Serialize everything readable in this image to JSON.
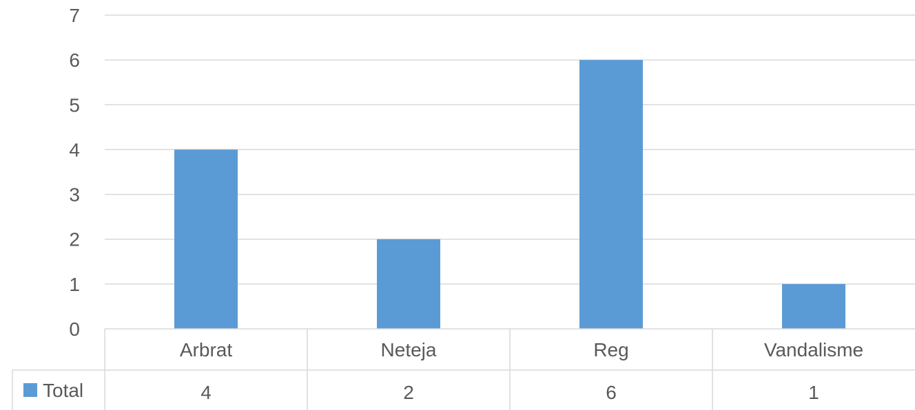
{
  "chart_data": {
    "type": "bar",
    "categories": [
      "Arbrat",
      "Neteja",
      "Reg",
      "Vandalisme"
    ],
    "series": [
      {
        "name": "Total",
        "values": [
          4,
          2,
          6,
          1
        ],
        "color": "#5b9bd5"
      }
    ],
    "ylim": [
      0,
      7
    ],
    "yticks": [
      0,
      1,
      2,
      3,
      4,
      5,
      6,
      7
    ],
    "grid": true,
    "data_table": true,
    "legend": "data-table-row"
  }
}
